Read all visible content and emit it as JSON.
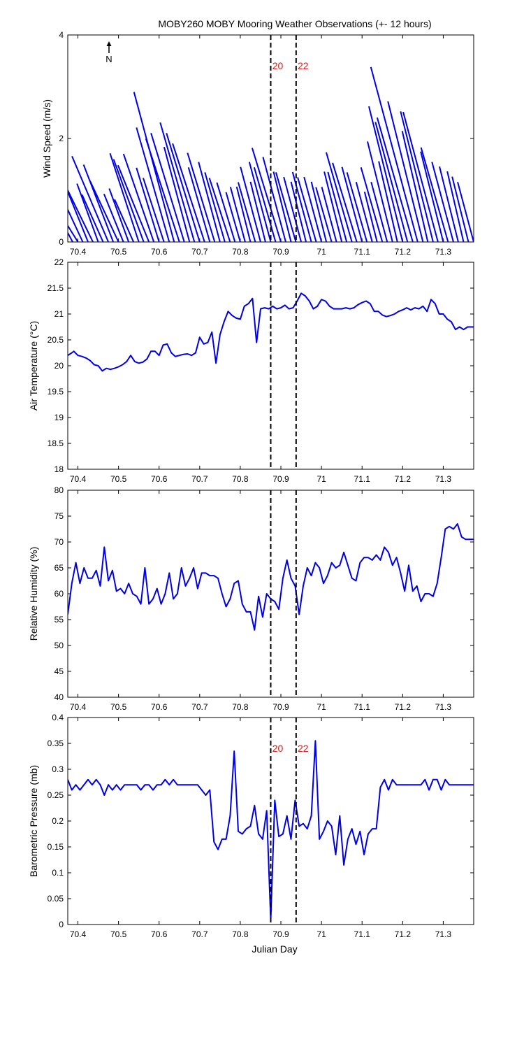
{
  "title": "MOBY260 MOBY Mooring Weather Observations (+- 12 hours)",
  "north_label": "N",
  "xlabel": "Julian Day",
  "x_ticks": [
    "70.4",
    "70.5",
    "70.6",
    "70.7",
    "70.8",
    "70.9",
    "71",
    "71.1",
    "71.2",
    "71.3"
  ],
  "colors": {
    "series": "#0000e6",
    "marker_text": "#d42020",
    "marker_line": "#000000"
  },
  "markers": [
    {
      "x": 70.875,
      "label": "20"
    },
    {
      "x": 70.9375,
      "label": "22"
    }
  ],
  "chart_data": [
    {
      "type": "line",
      "subtype": "wind-stick",
      "ylabel": "Wind Speed (m/s)",
      "xlim": [
        70.375,
        71.375
      ],
      "ylim": [
        0,
        4
      ],
      "y_ticks": [
        "0",
        "2",
        "4"
      ],
      "show_markers_labels": true,
      "series": [
        {
          "x": [
            70.375,
            70.387,
            70.4,
            70.412,
            70.425,
            70.437,
            70.45,
            70.462,
            70.475,
            70.487,
            70.5,
            70.512,
            70.525,
            70.537,
            70.55,
            70.562,
            70.575,
            70.587,
            70.6,
            70.612,
            70.625,
            70.637,
            70.65,
            70.662,
            70.675,
            70.687,
            70.7,
            70.712,
            70.725,
            70.737,
            70.75,
            70.762,
            70.775,
            70.787,
            70.8,
            70.812,
            70.825,
            70.837,
            70.85,
            70.862,
            70.875,
            70.887,
            70.9,
            70.912,
            70.925,
            70.937,
            70.95,
            70.962,
            70.975,
            70.987,
            71.0,
            71.012,
            71.025,
            71.037,
            71.05,
            71.062,
            71.075,
            71.087,
            71.1,
            71.112,
            71.125,
            71.137,
            71.15,
            71.162,
            71.175,
            71.187,
            71.2,
            71.212,
            71.225,
            71.237,
            71.25,
            71.262,
            71.275,
            71.287,
            71.3,
            71.312,
            71.325,
            71.337,
            71.35,
            71.362,
            71.375
          ],
          "speed": [
            1.4,
            1.2,
            1.0,
            2.1,
            2.0,
            1.5,
            1.2,
            1.0,
            1.8,
            1.6,
            1.3,
            1.0,
            1.1,
            0.9,
            1.8,
            1.7,
            1.6,
            1.8,
            1.5,
            1.3,
            2.3,
            3.0,
            2.1,
            2.2,
            1.9,
            2.4,
            2.2,
            2.0,
            1.5,
            1.8,
            1.6,
            1.4,
            1.3,
            1.2,
            1.0,
            1.1,
            1.1,
            1.2,
            1.5,
            1.2,
            1.6,
            1.5,
            1.9,
            1.7,
            1.4,
            1.4,
            1.3,
            1.2,
            1.4,
            1.3,
            1.3,
            1.2,
            1.1,
            1.1,
            1.4,
            1.4,
            1.8,
            1.6,
            1.5,
            1.4,
            1.2,
            1.0,
            1.5,
            1.2,
            2.0,
            1.6,
            2.7,
            2.4,
            2.5,
            3.5,
            2.8,
            2.2,
            2.6,
            2.6,
            1.8,
            1.9,
            1.6,
            1.5,
            1.4,
            1.3,
            1.2
          ],
          "dir_deg": [
            -30,
            -28,
            -32,
            -25,
            -22,
            -26,
            -20,
            -24,
            -23,
            -21,
            -25,
            -22,
            -20,
            -24,
            -18,
            -20,
            -22,
            -19,
            -17,
            -18,
            -16,
            -15,
            -18,
            -17,
            -15,
            -16,
            -17,
            -18,
            -16,
            -17,
            -15,
            -16,
            -18,
            -17,
            -16,
            -15,
            -14,
            -16,
            -15,
            -14,
            -15,
            -16,
            -17,
            -15,
            -14,
            -16,
            -15,
            -14,
            -15,
            -16,
            -15,
            -14,
            -16,
            -15,
            -14,
            -15,
            -16,
            -17,
            -15,
            -16,
            -15,
            -14,
            -16,
            -15,
            -14,
            -13,
            -14,
            -15,
            -16,
            -15,
            -14,
            -13,
            -14,
            -15,
            -14,
            -16,
            -15,
            -14,
            -13,
            -14,
            -15
          ]
        }
      ]
    },
    {
      "type": "line",
      "ylabel": "Air Temperature (°C)",
      "xlim": [
        70.375,
        71.375
      ],
      "ylim": [
        18,
        22
      ],
      "y_ticks": [
        "18",
        "18.5",
        "19",
        "19.5",
        "20",
        "20.5",
        "21",
        "21.5",
        "22"
      ],
      "series": [
        {
          "x": [
            70.375,
            70.385,
            70.39,
            70.4,
            70.41,
            70.42,
            70.43,
            70.44,
            70.45,
            70.46,
            70.47,
            70.48,
            70.49,
            70.5,
            70.51,
            70.52,
            70.53,
            70.54,
            70.55,
            70.56,
            70.57,
            70.58,
            70.59,
            70.6,
            70.61,
            70.62,
            70.63,
            70.64,
            70.65,
            70.66,
            70.67,
            70.68,
            70.69,
            70.7,
            70.71,
            70.72,
            70.73,
            70.74,
            70.75,
            70.76,
            70.77,
            70.78,
            70.79,
            70.8,
            70.81,
            70.82,
            70.83,
            70.84,
            70.85,
            70.86,
            70.87,
            70.88,
            70.89,
            70.9,
            70.91,
            70.92,
            70.93,
            70.94,
            70.95,
            70.96,
            70.97,
            70.98,
            70.99,
            71.0,
            71.01,
            71.02,
            71.03,
            71.04,
            71.05,
            71.06,
            71.07,
            71.08,
            71.09,
            71.1,
            71.11,
            71.12,
            71.13,
            71.14,
            71.15,
            71.16,
            71.17,
            71.18,
            71.19,
            71.2,
            71.21,
            71.22,
            71.23,
            71.24,
            71.25,
            71.26,
            71.27,
            71.28,
            71.29,
            71.3,
            71.31,
            71.32,
            71.33,
            71.34,
            71.35,
            71.36,
            71.375
          ],
          "y": [
            20.2,
            20.25,
            20.28,
            20.2,
            20.18,
            20.15,
            20.1,
            20.02,
            20.0,
            19.9,
            19.95,
            19.93,
            19.95,
            19.98,
            20.02,
            20.08,
            20.2,
            20.08,
            20.05,
            20.07,
            20.13,
            20.28,
            20.28,
            20.2,
            20.4,
            20.42,
            20.25,
            20.18,
            20.2,
            20.22,
            20.23,
            20.2,
            20.25,
            20.55,
            20.42,
            20.45,
            20.65,
            20.05,
            20.6,
            20.85,
            21.05,
            20.97,
            20.92,
            20.9,
            21.15,
            21.2,
            21.3,
            20.45,
            21.1,
            21.12,
            21.1,
            21.15,
            21.1,
            21.12,
            21.17,
            21.1,
            21.12,
            21.25,
            21.4,
            21.35,
            21.25,
            21.1,
            21.15,
            21.28,
            21.25,
            21.15,
            21.1,
            21.1,
            21.1,
            21.12,
            21.1,
            21.12,
            21.18,
            21.22,
            21.25,
            21.2,
            21.05,
            21.05,
            20.98,
            20.95,
            20.97,
            21.0,
            21.05,
            21.08,
            21.12,
            21.08,
            21.12,
            21.1,
            21.15,
            21.05,
            21.28,
            21.2,
            21.0,
            21.0,
            20.9,
            20.85,
            20.7,
            20.75,
            20.7,
            20.75,
            20.75
          ]
        }
      ]
    },
    {
      "type": "line",
      "ylabel": "Relative Humidity (%)",
      "xlim": [
        70.375,
        71.375
      ],
      "ylim": [
        40,
        80
      ],
      "y_ticks": [
        "40",
        "45",
        "50",
        "55",
        "60",
        "65",
        "70",
        "75",
        "80"
      ],
      "series": [
        {
          "x": [
            70.375,
            70.385,
            70.395,
            70.405,
            70.415,
            70.425,
            70.435,
            70.445,
            70.455,
            70.465,
            70.475,
            70.485,
            70.495,
            70.505,
            70.515,
            70.525,
            70.535,
            70.545,
            70.555,
            70.565,
            70.575,
            70.585,
            70.595,
            70.605,
            70.615,
            70.625,
            70.635,
            70.645,
            70.655,
            70.665,
            70.675,
            70.685,
            70.695,
            70.705,
            70.715,
            70.725,
            70.735,
            70.745,
            70.755,
            70.765,
            70.775,
            70.785,
            70.795,
            70.805,
            70.815,
            70.825,
            70.835,
            70.845,
            70.855,
            70.865,
            70.875,
            70.885,
            70.895,
            70.905,
            70.915,
            70.925,
            70.935,
            70.945,
            70.955,
            70.965,
            70.975,
            70.985,
            70.995,
            71.005,
            71.015,
            71.025,
            71.035,
            71.045,
            71.055,
            71.065,
            71.075,
            71.085,
            71.095,
            71.105,
            71.115,
            71.125,
            71.135,
            71.145,
            71.155,
            71.165,
            71.175,
            71.185,
            71.195,
            71.205,
            71.215,
            71.225,
            71.235,
            71.245,
            71.255,
            71.265,
            71.275,
            71.285,
            71.295,
            71.305,
            71.315,
            71.325,
            71.335,
            71.345,
            71.355,
            71.365,
            71.375
          ],
          "y": [
            56,
            62,
            66,
            62,
            65,
            63,
            63,
            64.5,
            61.5,
            69,
            62.5,
            64.5,
            60.5,
            61,
            60,
            62,
            60,
            59.5,
            58,
            65,
            58,
            59,
            61,
            58,
            60,
            64,
            59,
            60,
            65,
            61.5,
            63,
            65,
            61,
            64,
            64,
            63.5,
            63.5,
            63,
            60,
            57.5,
            59,
            62,
            62.5,
            58,
            56.5,
            56.5,
            53,
            59.5,
            55.5,
            60,
            59,
            58.5,
            57,
            63,
            66.5,
            63,
            61.5,
            56,
            61.5,
            65,
            63.5,
            66,
            65,
            62,
            63.5,
            66,
            65,
            65.5,
            68,
            65.5,
            63,
            62.5,
            66,
            67,
            67,
            66.5,
            67.5,
            66.5,
            69,
            68,
            65.5,
            67,
            64,
            60.5,
            65.5,
            60.5,
            61.5,
            58.5,
            60,
            60,
            59.5,
            62,
            67,
            72.5,
            73,
            72.5,
            73.5,
            71,
            70.5,
            70.5,
            70.5
          ]
        }
      ]
    },
    {
      "type": "line",
      "ylabel": "Barometric Pressure (mb)",
      "xlim": [
        70.375,
        71.375
      ],
      "ylim": [
        0,
        0.4
      ],
      "y_ticks": [
        "0",
        "0.05",
        "0.1",
        "0.15",
        "0.2",
        "0.25",
        "0.3",
        "0.35",
        "0.4"
      ],
      "show_markers_labels": true,
      "series": [
        {
          "x": [
            70.375,
            70.385,
            70.395,
            70.405,
            70.415,
            70.425,
            70.435,
            70.445,
            70.455,
            70.465,
            70.475,
            70.485,
            70.495,
            70.505,
            70.515,
            70.525,
            70.535,
            70.545,
            70.555,
            70.565,
            70.575,
            70.585,
            70.595,
            70.605,
            70.615,
            70.625,
            70.635,
            70.645,
            70.655,
            70.665,
            70.675,
            70.685,
            70.695,
            70.705,
            70.715,
            70.725,
            70.735,
            70.745,
            70.755,
            70.765,
            70.775,
            70.785,
            70.795,
            70.805,
            70.815,
            70.825,
            70.835,
            70.845,
            70.855,
            70.865,
            70.875,
            70.885,
            70.895,
            70.905,
            70.915,
            70.925,
            70.935,
            70.945,
            70.955,
            70.965,
            70.975,
            70.985,
            70.995,
            71.005,
            71.015,
            71.025,
            71.035,
            71.045,
            71.055,
            71.065,
            71.075,
            71.085,
            71.095,
            71.105,
            71.115,
            71.125,
            71.135,
            71.145,
            71.155,
            71.165,
            71.175,
            71.185,
            71.195,
            71.205,
            71.215,
            71.225,
            71.235,
            71.245,
            71.255,
            71.265,
            71.275,
            71.285,
            71.295,
            71.305,
            71.315,
            71.325,
            71.335,
            71.345,
            71.355,
            71.365,
            71.375
          ],
          "y": [
            0.28,
            0.26,
            0.27,
            0.26,
            0.27,
            0.28,
            0.27,
            0.28,
            0.27,
            0.25,
            0.27,
            0.26,
            0.27,
            0.26,
            0.27,
            0.27,
            0.27,
            0.27,
            0.26,
            0.27,
            0.27,
            0.26,
            0.27,
            0.27,
            0.28,
            0.27,
            0.28,
            0.27,
            0.27,
            0.27,
            0.27,
            0.27,
            0.27,
            0.26,
            0.25,
            0.26,
            0.16,
            0.145,
            0.165,
            0.165,
            0.21,
            0.335,
            0.18,
            0.175,
            0.185,
            0.19,
            0.23,
            0.175,
            0.165,
            0.22,
            0.01,
            0.24,
            0.17,
            0.175,
            0.21,
            0.165,
            0.24,
            0.19,
            0.195,
            0.185,
            0.21,
            0.355,
            0.165,
            0.18,
            0.2,
            0.19,
            0.135,
            0.21,
            0.115,
            0.165,
            0.185,
            0.155,
            0.18,
            0.135,
            0.175,
            0.185,
            0.185,
            0.265,
            0.28,
            0.26,
            0.28,
            0.27,
            0.27,
            0.27,
            0.27,
            0.27,
            0.27,
            0.27,
            0.28,
            0.26,
            0.28,
            0.28,
            0.26,
            0.28,
            0.27,
            0.27,
            0.27,
            0.27,
            0.27,
            0.27,
            0.27
          ]
        }
      ]
    }
  ]
}
